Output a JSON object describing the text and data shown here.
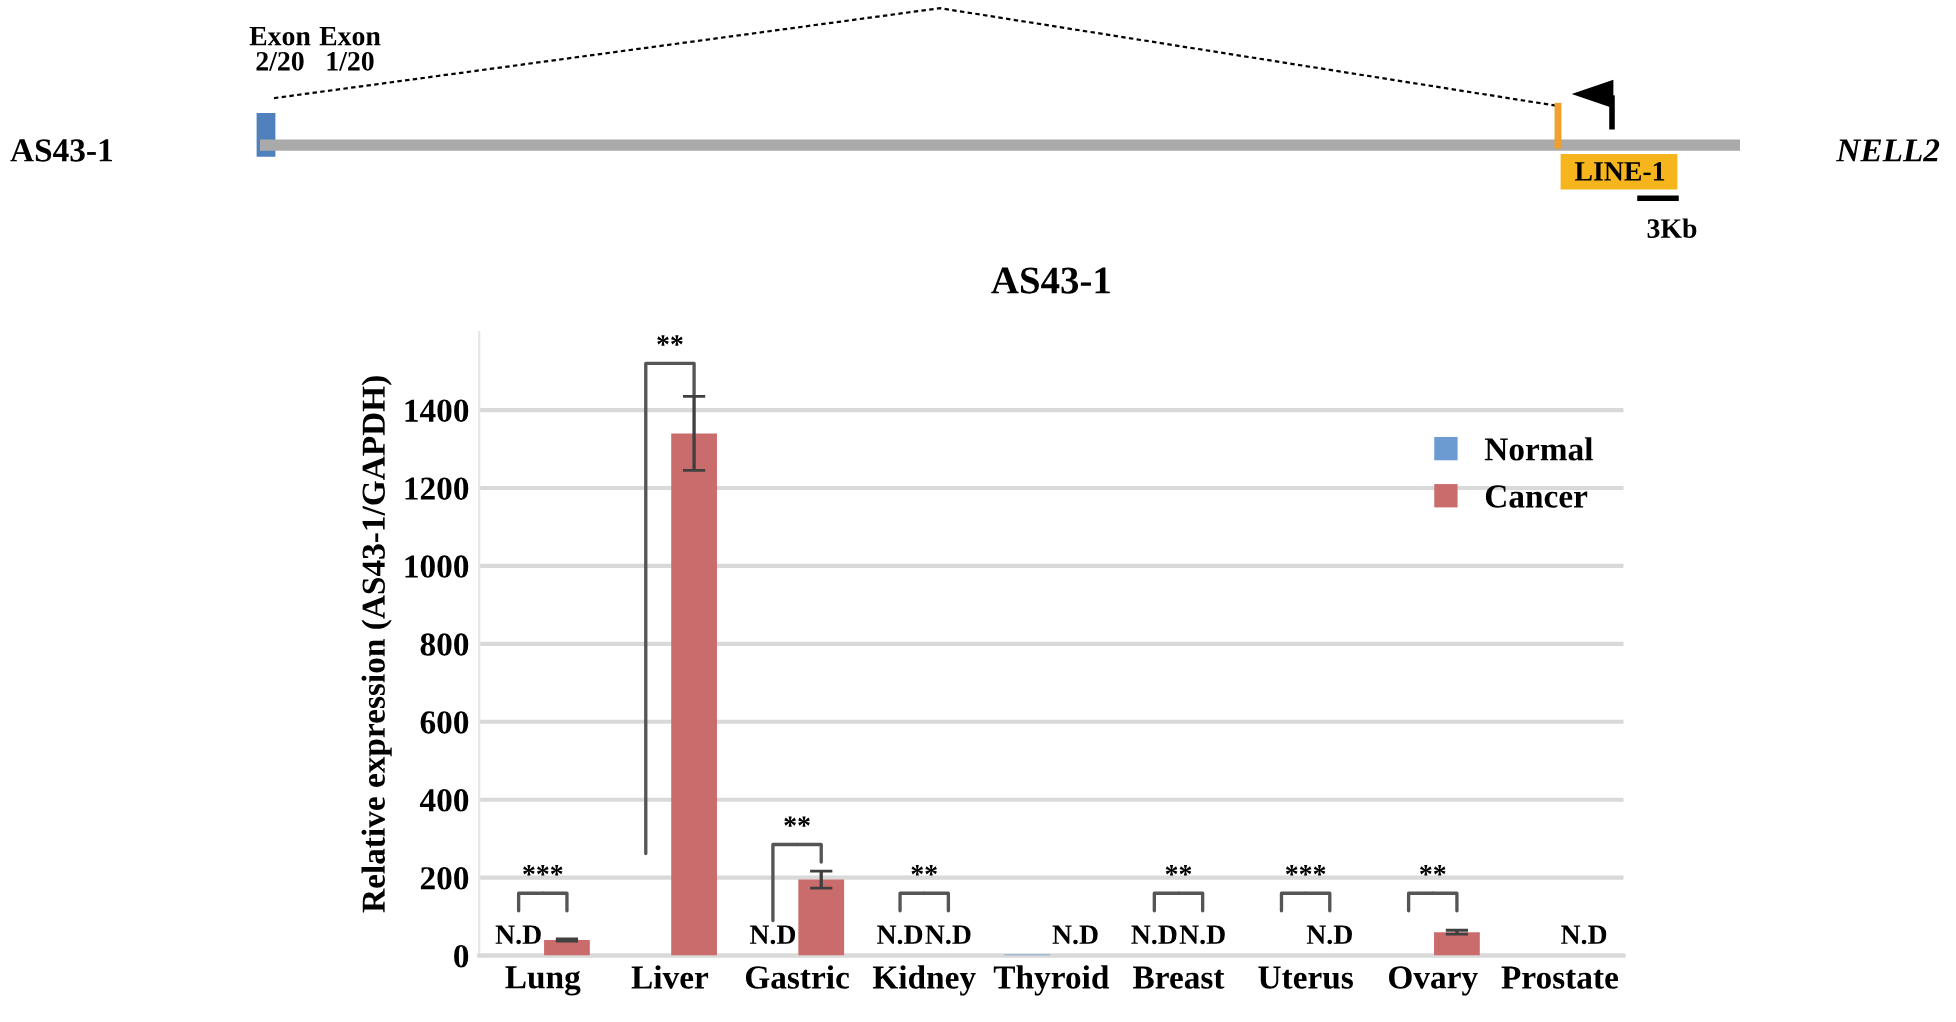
{
  "chart_data": {
    "type": "bar",
    "title": "AS43-1",
    "ylabel": "Relative expression (AS43-1/GAPDH)",
    "categories": [
      "Lung",
      "Liver",
      "Gastric",
      "Kidney",
      "Thyroid",
      "Breast",
      "Uterus",
      "Ovary",
      "Prostate"
    ],
    "series": [
      {
        "name": "Normal",
        "color": "#6b9bd1",
        "values": [
          null,
          0,
          null,
          null,
          3,
          null,
          0,
          0,
          0
        ],
        "value_labels": [
          "N.D",
          null,
          "N.D",
          "N.D",
          null,
          "N.D",
          null,
          null,
          null
        ]
      },
      {
        "name": "Cancer",
        "color": "#cb6c6c",
        "values": [
          40,
          1340,
          195,
          null,
          null,
          null,
          null,
          60,
          null
        ],
        "errors": [
          3,
          95,
          22,
          null,
          null,
          null,
          null,
          5,
          null
        ],
        "value_labels": [
          null,
          null,
          null,
          "N.D",
          "N.D",
          "N.D",
          "N.D",
          null,
          "N.D"
        ]
      }
    ],
    "ylim": [
      0,
      1600
    ],
    "yticks": [
      0,
      200,
      400,
      600,
      800,
      1000,
      1200,
      1400
    ],
    "grid": "y",
    "legend": "top right",
    "annotations": [
      "***",
      "**",
      "**",
      "**",
      "**",
      "***",
      "**",
      "Exon 2/20",
      "Exon 1/20",
      "AS43-1",
      "NELL2",
      "LINE-1",
      "3Kb"
    ]
  }
}
